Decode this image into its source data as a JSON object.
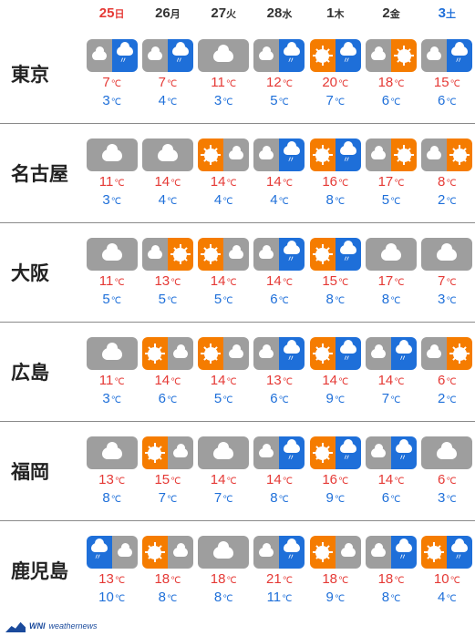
{
  "colors": {
    "sunday": "#e53935",
    "saturday": "#1e6fd9",
    "weekday": "#333333",
    "high": "#e53935",
    "low": "#1e6fd9",
    "bg_gray": "#9e9e9e",
    "bg_orange": "#f57c00",
    "bg_blue": "#1e6fd9"
  },
  "temp_unit": "℃",
  "days": [
    {
      "num": "25",
      "suffix": "日",
      "type": "sunday"
    },
    {
      "num": "26",
      "suffix": "月",
      "type": "weekday"
    },
    {
      "num": "27",
      "suffix": "火",
      "type": "weekday"
    },
    {
      "num": "28",
      "suffix": "水",
      "type": "weekday"
    },
    {
      "num": "1",
      "suffix": "木",
      "type": "weekday"
    },
    {
      "num": "2",
      "suffix": "金",
      "type": "weekday"
    },
    {
      "num": "3",
      "suffix": "土",
      "type": "saturday"
    }
  ],
  "cities": [
    {
      "name": "東京",
      "forecast": [
        {
          "icon": [
            "cloud-gray",
            "rain-blue"
          ],
          "high": 7,
          "low": 3
        },
        {
          "icon": [
            "cloud-gray",
            "rain-blue"
          ],
          "high": 7,
          "low": 4
        },
        {
          "icon": [
            "cloud-gray"
          ],
          "high": 11,
          "low": 3
        },
        {
          "icon": [
            "cloud-gray",
            "rain-blue"
          ],
          "high": 12,
          "low": 5
        },
        {
          "icon": [
            "sun-orange",
            "rain-blue"
          ],
          "high": 20,
          "low": 7
        },
        {
          "icon": [
            "cloud-gray",
            "sun-orange"
          ],
          "high": 18,
          "low": 6
        },
        {
          "icon": [
            "cloud-gray",
            "rain-blue"
          ],
          "high": 15,
          "low": 6
        }
      ]
    },
    {
      "name": "名古屋",
      "forecast": [
        {
          "icon": [
            "cloud-gray"
          ],
          "high": 11,
          "low": 3
        },
        {
          "icon": [
            "cloud-gray"
          ],
          "high": 14,
          "low": 4
        },
        {
          "icon": [
            "sun-orange",
            "cloud-gray"
          ],
          "high": 14,
          "low": 4
        },
        {
          "icon": [
            "cloud-gray",
            "rain-blue"
          ],
          "high": 14,
          "low": 4
        },
        {
          "icon": [
            "sun-orange",
            "rain-blue"
          ],
          "high": 16,
          "low": 8
        },
        {
          "icon": [
            "cloud-gray",
            "sun-orange"
          ],
          "high": 17,
          "low": 5
        },
        {
          "icon": [
            "cloud-gray",
            "sun-orange"
          ],
          "high": 8,
          "low": 2
        }
      ]
    },
    {
      "name": "大阪",
      "forecast": [
        {
          "icon": [
            "cloud-gray"
          ],
          "high": 11,
          "low": 5
        },
        {
          "icon": [
            "cloud-gray",
            "sun-orange"
          ],
          "high": 13,
          "low": 5
        },
        {
          "icon": [
            "sun-orange",
            "cloud-gray"
          ],
          "high": 14,
          "low": 5
        },
        {
          "icon": [
            "cloud-gray",
            "rain-blue"
          ],
          "high": 14,
          "low": 6
        },
        {
          "icon": [
            "sun-orange",
            "rain-blue"
          ],
          "high": 15,
          "low": 8
        },
        {
          "icon": [
            "cloud-gray"
          ],
          "high": 17,
          "low": 8
        },
        {
          "icon": [
            "cloud-gray"
          ],
          "high": 7,
          "low": 3
        }
      ]
    },
    {
      "name": "広島",
      "forecast": [
        {
          "icon": [
            "cloud-gray"
          ],
          "high": 11,
          "low": 3
        },
        {
          "icon": [
            "sun-orange",
            "cloud-gray"
          ],
          "high": 14,
          "low": 6
        },
        {
          "icon": [
            "sun-orange",
            "cloud-gray"
          ],
          "high": 14,
          "low": 5
        },
        {
          "icon": [
            "cloud-gray",
            "rain-blue"
          ],
          "high": 13,
          "low": 6
        },
        {
          "icon": [
            "sun-orange",
            "rain-blue"
          ],
          "high": 14,
          "low": 9
        },
        {
          "icon": [
            "cloud-gray",
            "rain-blue"
          ],
          "high": 14,
          "low": 7
        },
        {
          "icon": [
            "cloud-gray",
            "sun-orange"
          ],
          "high": 6,
          "low": 2
        }
      ]
    },
    {
      "name": "福岡",
      "forecast": [
        {
          "icon": [
            "cloud-gray"
          ],
          "high": 13,
          "low": 8
        },
        {
          "icon": [
            "sun-orange",
            "cloud-gray"
          ],
          "high": 15,
          "low": 7
        },
        {
          "icon": [
            "cloud-gray"
          ],
          "high": 14,
          "low": 7
        },
        {
          "icon": [
            "cloud-gray",
            "rain-blue"
          ],
          "high": 14,
          "low": 8
        },
        {
          "icon": [
            "sun-orange",
            "rain-blue"
          ],
          "high": 16,
          "low": 9
        },
        {
          "icon": [
            "cloud-gray",
            "rain-blue"
          ],
          "high": 14,
          "low": 6
        },
        {
          "icon": [
            "cloud-gray"
          ],
          "high": 6,
          "low": 3
        }
      ]
    },
    {
      "name": "鹿児島",
      "forecast": [
        {
          "icon": [
            "rain-blue",
            "cloud-gray"
          ],
          "high": 13,
          "low": 10
        },
        {
          "icon": [
            "sun-orange",
            "cloud-gray"
          ],
          "high": 18,
          "low": 8
        },
        {
          "icon": [
            "cloud-gray"
          ],
          "high": 18,
          "low": 8
        },
        {
          "icon": [
            "cloud-gray",
            "rain-blue"
          ],
          "high": 21,
          "low": 11
        },
        {
          "icon": [
            "sun-orange",
            "cloud-gray"
          ],
          "high": 18,
          "low": 9
        },
        {
          "icon": [
            "cloud-gray",
            "rain-blue"
          ],
          "high": 18,
          "low": 8
        },
        {
          "icon": [
            "sun-orange",
            "rain-blue"
          ],
          "high": 10,
          "low": 4
        }
      ]
    }
  ],
  "watermark": {
    "brand": "WNI",
    "text": "weathernews"
  }
}
